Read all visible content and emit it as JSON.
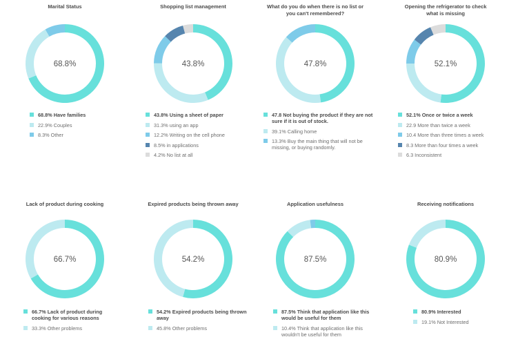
{
  "colors": {
    "teal": "#67e0db",
    "light_teal": "#bdeaf0",
    "sky": "#7ecbe9",
    "steel": "#5685ae",
    "gray": "#dcdcdc"
  },
  "chart_data": [
    {
      "type": "pie",
      "title": "Marital Status",
      "center_label": "68.8%",
      "slices": [
        {
          "value": 68.8,
          "label": "68.8% Have families",
          "color": "#67e0db"
        },
        {
          "value": 22.9,
          "label": "22.9% Couples",
          "color": "#bdeaf0"
        },
        {
          "value": 8.3,
          "label": "8.3% Other",
          "color": "#7ecbe9"
        }
      ]
    },
    {
      "type": "pie",
      "title": "Shopping list management",
      "center_label": "43.8%",
      "slices": [
        {
          "value": 43.8,
          "label": "43.8% Using a sheet of paper",
          "color": "#67e0db"
        },
        {
          "value": 31.3,
          "label": "31.3% using an app",
          "color": "#bdeaf0"
        },
        {
          "value": 12.2,
          "label": "12.2% Writing on the cell phone",
          "color": "#7ecbe9"
        },
        {
          "value": 8.5,
          "label": "8.5% in applications",
          "color": "#5685ae"
        },
        {
          "value": 4.2,
          "label": "4.2% No list at all",
          "color": "#dcdcdc"
        }
      ]
    },
    {
      "type": "pie",
      "title": "What do you do when there is no list or you can't remembered?",
      "center_label": "47.8%",
      "slices": [
        {
          "value": 47.8,
          "label": "47.8 Not buying the product if they are not sure if it is out of stock.",
          "color": "#67e0db"
        },
        {
          "value": 39.1,
          "label": "39.1% Calling home",
          "color": "#bdeaf0"
        },
        {
          "value": 13.3,
          "label": "13.3% Buy the main thing that will not be missing, or buying randomly.",
          "color": "#7ecbe9"
        }
      ]
    },
    {
      "type": "pie",
      "title": "Opening the refrigerator to check what is missing",
      "center_label": "52.1%",
      "slices": [
        {
          "value": 52.1,
          "label": "52.1% Once or twice a week",
          "color": "#67e0db"
        },
        {
          "value": 22.9,
          "label": "22.9 More than twice a week",
          "color": "#bdeaf0"
        },
        {
          "value": 10.4,
          "label": "10.4 More than three times a week",
          "color": "#7ecbe9"
        },
        {
          "value": 8.3,
          "label": "8.3 More than four times a week",
          "color": "#5685ae"
        },
        {
          "value": 6.3,
          "label": "6.3 Inconsistent",
          "color": "#dcdcdc"
        }
      ]
    },
    {
      "type": "pie",
      "title": "Lack of product during cooking",
      "center_label": "66.7%",
      "slices": [
        {
          "value": 66.7,
          "label": "66.7% Lack of product during cooking for various reasons",
          "color": "#67e0db"
        },
        {
          "value": 33.3,
          "label": "33.3% Other problems",
          "color": "#bdeaf0"
        }
      ]
    },
    {
      "type": "pie",
      "title": "Expired products being thrown away",
      "center_label": "54.2%",
      "slices": [
        {
          "value": 54.2,
          "label": "54.2% Expired products being thrown away",
          "color": "#67e0db"
        },
        {
          "value": 45.8,
          "label": "45.8% Other problems",
          "color": "#bdeaf0"
        }
      ]
    },
    {
      "type": "pie",
      "title": "Application usefulness",
      "center_label": "87.5%",
      "slices": [
        {
          "value": 87.5,
          "label": "87.5% Think that application like this would be useful for them",
          "color": "#67e0db"
        },
        {
          "value": 10.4,
          "label": "10.4% Think that application like this wouldn't be useful for them",
          "color": "#bdeaf0"
        },
        {
          "value": 2.1,
          "label": "",
          "color": "#7ecbe9"
        }
      ]
    },
    {
      "type": "pie",
      "title": "Receiving notifications",
      "center_label": "80.9%",
      "slices": [
        {
          "value": 80.9,
          "label": "80.9% Interested",
          "color": "#67e0db"
        },
        {
          "value": 19.1,
          "label": "19.1% Not Interested",
          "color": "#bdeaf0"
        }
      ]
    }
  ]
}
